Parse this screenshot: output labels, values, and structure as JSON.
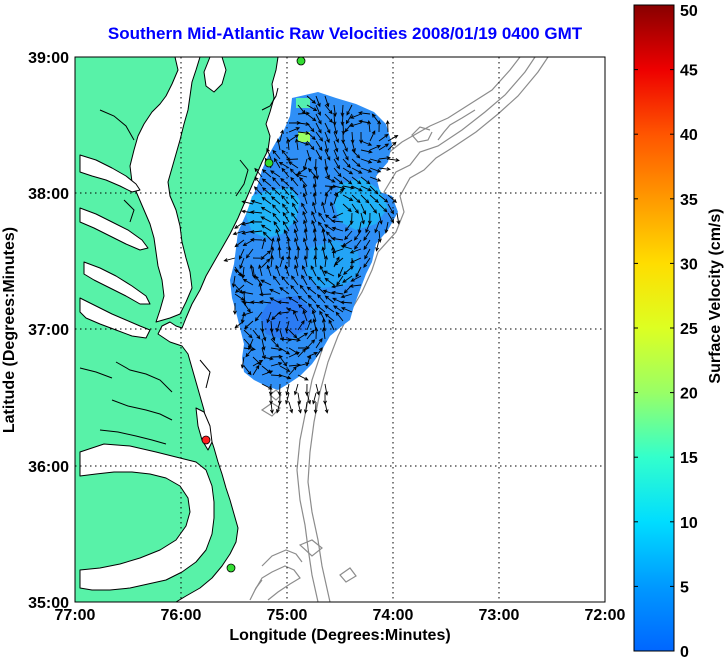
{
  "title": "Southern Mid-Atlantic Raw Velocities 2008/01/19 0400 GMT",
  "x_axis": {
    "label": "Longitude (Degrees:Minutes)",
    "ticks": [
      "77:00",
      "76:00",
      "75:00",
      "74:00",
      "73:00",
      "72:00"
    ],
    "range_deg_west": [
      77,
      72
    ]
  },
  "y_axis": {
    "label": "Latitude (Degrees:Minutes)",
    "ticks": [
      "39:00",
      "38:00",
      "37:00",
      "36:00",
      "35:00"
    ],
    "range_deg_north": [
      35,
      39
    ]
  },
  "colorbar": {
    "label": "Surface Velocity (cm/s)",
    "ticks": [
      "0",
      "5",
      "10",
      "15",
      "20",
      "25",
      "30",
      "35",
      "40",
      "45",
      "50"
    ],
    "range": [
      0,
      50
    ],
    "colormap": "jet"
  },
  "colors": {
    "land": "#58f2a8",
    "water": "#ffffff",
    "coastline": "#000000",
    "bathymetry_contour": "#8c8c8c",
    "vectors": "#000000",
    "title": "#0000ff",
    "velocity_field_typical": "#2f8ff6"
  },
  "features": {
    "grid": "dotted",
    "velocity_field": "surface current vectors over color-coded speed, mostly 3-12 cm/s",
    "stations": [
      {
        "color": "green",
        "lon": -74.9,
        "lat": 39.0
      },
      {
        "color": "green",
        "lon": -75.1,
        "lat": 38.27
      },
      {
        "color": "red",
        "lon": -75.74,
        "lat": 36.18
      },
      {
        "color": "green",
        "lon": -75.45,
        "lat": 35.23
      }
    ]
  }
}
